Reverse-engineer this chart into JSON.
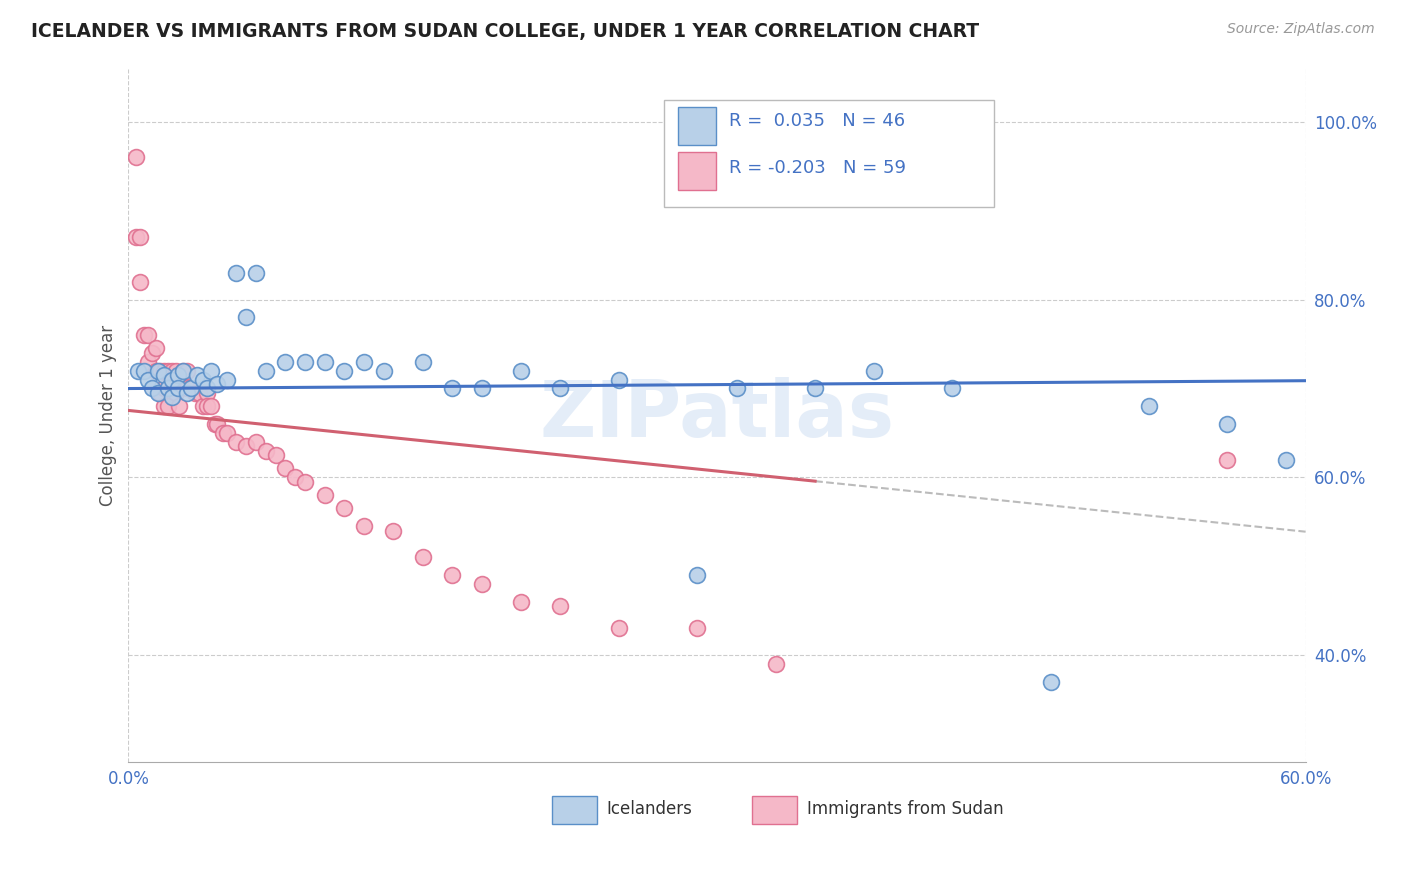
{
  "title": "ICELANDER VS IMMIGRANTS FROM SUDAN COLLEGE, UNDER 1 YEAR CORRELATION CHART",
  "source": "Source: ZipAtlas.com",
  "ylabel": "College, Under 1 year",
  "xlim": [
    0.0,
    0.6
  ],
  "ylim": [
    0.28,
    1.06
  ],
  "yticks": [
    0.4,
    0.6,
    0.8,
    1.0
  ],
  "ytick_labels": [
    "40.0%",
    "60.0%",
    "80.0%",
    "100.0%"
  ],
  "legend_r_icelander": "0.035",
  "legend_n_icelander": "46",
  "legend_r_sudan": "-0.203",
  "legend_n_sudan": "59",
  "color_icelander_fill": "#b8d0e8",
  "color_sudan_fill": "#f5b8c8",
  "color_icelander_edge": "#5a8fc8",
  "color_sudan_edge": "#e07090",
  "color_icelander_line": "#4472c4",
  "color_sudan_line": "#d06070",
  "color_legend_text": "#4472c4",
  "background_color": "#ffffff",
  "grid_color": "#cccccc",
  "watermark": "ZIPatlas",
  "icelander_x": [
    0.005,
    0.008,
    0.01,
    0.012,
    0.015,
    0.015,
    0.018,
    0.02,
    0.022,
    0.022,
    0.025,
    0.025,
    0.028,
    0.03,
    0.032,
    0.035,
    0.038,
    0.04,
    0.042,
    0.045,
    0.05,
    0.055,
    0.06,
    0.065,
    0.07,
    0.08,
    0.09,
    0.1,
    0.11,
    0.12,
    0.13,
    0.15,
    0.165,
    0.18,
    0.2,
    0.22,
    0.25,
    0.29,
    0.31,
    0.35,
    0.38,
    0.42,
    0.47,
    0.52,
    0.56,
    0.59
  ],
  "icelander_y": [
    0.72,
    0.72,
    0.71,
    0.7,
    0.72,
    0.695,
    0.715,
    0.7,
    0.71,
    0.69,
    0.715,
    0.7,
    0.72,
    0.695,
    0.7,
    0.715,
    0.71,
    0.7,
    0.72,
    0.705,
    0.71,
    0.83,
    0.78,
    0.83,
    0.72,
    0.73,
    0.73,
    0.73,
    0.72,
    0.73,
    0.72,
    0.73,
    0.7,
    0.7,
    0.72,
    0.7,
    0.71,
    0.49,
    0.7,
    0.7,
    0.72,
    0.7,
    0.37,
    0.68,
    0.66,
    0.62
  ],
  "sudan_x": [
    0.004,
    0.004,
    0.006,
    0.006,
    0.008,
    0.01,
    0.01,
    0.012,
    0.014,
    0.014,
    0.016,
    0.016,
    0.018,
    0.018,
    0.018,
    0.02,
    0.02,
    0.02,
    0.022,
    0.022,
    0.024,
    0.024,
    0.025,
    0.026,
    0.028,
    0.03,
    0.03,
    0.032,
    0.034,
    0.036,
    0.038,
    0.04,
    0.04,
    0.042,
    0.044,
    0.045,
    0.048,
    0.05,
    0.055,
    0.06,
    0.065,
    0.07,
    0.075,
    0.08,
    0.085,
    0.09,
    0.1,
    0.11,
    0.12,
    0.135,
    0.15,
    0.165,
    0.18,
    0.2,
    0.22,
    0.25,
    0.29,
    0.33,
    0.56
  ],
  "sudan_y": [
    0.96,
    0.87,
    0.87,
    0.82,
    0.76,
    0.76,
    0.73,
    0.74,
    0.745,
    0.72,
    0.72,
    0.695,
    0.72,
    0.7,
    0.68,
    0.72,
    0.7,
    0.68,
    0.72,
    0.7,
    0.72,
    0.695,
    0.7,
    0.68,
    0.72,
    0.72,
    0.7,
    0.7,
    0.695,
    0.695,
    0.68,
    0.695,
    0.68,
    0.68,
    0.66,
    0.66,
    0.65,
    0.65,
    0.64,
    0.635,
    0.64,
    0.63,
    0.625,
    0.61,
    0.6,
    0.595,
    0.58,
    0.565,
    0.545,
    0.54,
    0.51,
    0.49,
    0.48,
    0.46,
    0.455,
    0.43,
    0.43,
    0.39,
    0.62
  ],
  "sudan_line_end_solid": 0.35,
  "line_start": 0.0,
  "line_end": 0.6
}
